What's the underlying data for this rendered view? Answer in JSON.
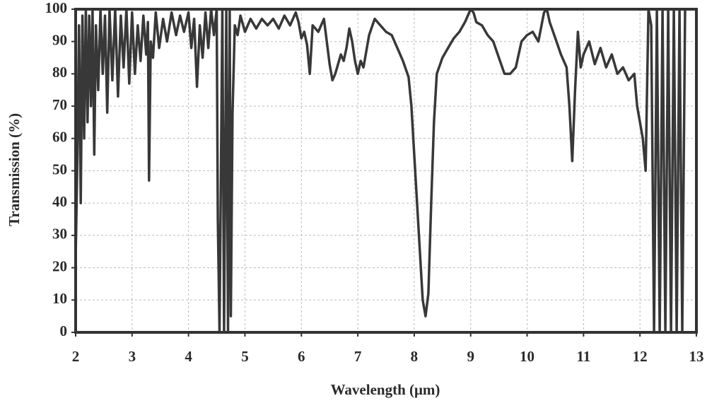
{
  "chart_data": {
    "type": "line",
    "xlabel": "Wavelength (μm)",
    "ylabel": "Transmission (%)",
    "x": [
      2.0,
      2.03,
      2.06,
      2.09,
      2.12,
      2.15,
      2.18,
      2.21,
      2.24,
      2.27,
      2.3,
      2.33,
      2.36,
      2.4,
      2.44,
      2.48,
      2.52,
      2.56,
      2.6,
      2.65,
      2.7,
      2.75,
      2.8,
      2.85,
      2.9,
      2.95,
      3.0,
      3.05,
      3.1,
      3.15,
      3.2,
      3.25,
      3.28,
      3.3,
      3.33,
      3.37,
      3.42,
      3.48,
      3.55,
      3.62,
      3.7,
      3.78,
      3.85,
      3.92,
      4.0,
      4.05,
      4.1,
      4.15,
      4.2,
      4.25,
      4.3,
      4.35,
      4.4,
      4.45,
      4.5,
      4.52,
      4.55,
      4.6,
      4.63,
      4.67,
      4.7,
      4.73,
      4.75,
      4.78,
      4.82,
      4.87,
      4.92,
      5.0,
      5.1,
      5.2,
      5.3,
      5.4,
      5.5,
      5.6,
      5.7,
      5.8,
      5.9,
      5.95,
      6.0,
      6.05,
      6.1,
      6.15,
      6.2,
      6.3,
      6.4,
      6.45,
      6.5,
      6.55,
      6.6,
      6.7,
      6.75,
      6.8,
      6.85,
      6.9,
      6.95,
      7.0,
      7.05,
      7.1,
      7.2,
      7.3,
      7.4,
      7.5,
      7.6,
      7.7,
      7.8,
      7.9,
      7.95,
      8.0,
      8.05,
      8.1,
      8.15,
      8.2,
      8.25,
      8.3,
      8.35,
      8.4,
      8.5,
      8.6,
      8.7,
      8.8,
      8.9,
      9.0,
      9.05,
      9.1,
      9.2,
      9.3,
      9.4,
      9.5,
      9.6,
      9.7,
      9.8,
      9.9,
      10.0,
      10.1,
      10.2,
      10.3,
      10.35,
      10.4,
      10.5,
      10.6,
      10.7,
      10.75,
      10.8,
      10.85,
      10.9,
      10.95,
      11.0,
      11.1,
      11.2,
      11.3,
      11.4,
      11.5,
      11.6,
      11.7,
      11.8,
      11.9,
      11.95,
      12.0,
      12.05,
      12.1,
      12.15,
      12.2,
      12.25,
      12.3,
      12.35,
      12.4,
      12.45,
      12.5,
      12.55,
      12.6,
      12.65,
      12.7,
      12.75,
      12.8
    ],
    "series": [
      {
        "color": "#383838",
        "values": [
          23,
          53,
          95,
          40,
          98,
          60,
          100,
          65,
          98,
          70,
          100,
          55,
          95,
          75,
          100,
          80,
          98,
          68,
          100,
          78,
          100,
          73,
          98,
          82,
          100,
          77,
          99,
          80,
          95,
          84,
          98,
          86,
          96,
          47,
          90,
          85,
          99,
          88,
          97,
          90,
          99,
          92,
          98,
          93,
          99,
          88,
          97,
          76,
          95,
          85,
          99,
          88,
          100,
          92,
          100,
          35,
          0,
          100,
          0,
          100,
          0,
          100,
          5,
          68,
          95,
          92,
          98,
          93,
          97,
          94,
          97,
          95,
          97,
          94,
          98,
          95,
          99,
          96,
          91,
          93,
          89,
          80,
          95,
          93,
          97,
          90,
          83,
          78,
          80,
          86,
          84,
          88,
          94,
          90,
          84,
          80,
          84,
          82,
          92,
          97,
          95,
          93,
          92,
          88,
          84,
          79,
          70,
          55,
          40,
          25,
          10,
          5,
          12,
          40,
          65,
          80,
          85,
          88,
          91,
          93,
          96,
          100,
          99,
          96,
          95,
          92,
          90,
          85,
          80,
          80,
          82,
          90,
          92,
          93,
          90,
          99,
          100,
          96,
          91,
          86,
          82,
          70,
          53,
          75,
          93,
          82,
          86,
          90,
          83,
          88,
          82,
          86,
          80,
          82,
          78,
          80,
          70,
          65,
          60,
          50,
          100,
          95,
          0,
          100,
          0,
          100,
          0,
          100,
          0,
          100,
          0,
          100,
          0,
          100
        ]
      }
    ],
    "xlim": [
      2,
      13
    ],
    "ylim": [
      0,
      100
    ],
    "xticks": [
      2,
      3,
      4,
      5,
      6,
      7,
      8,
      9,
      10,
      11,
      12,
      13
    ],
    "yticks": [
      0,
      10,
      20,
      30,
      40,
      50,
      60,
      70,
      80,
      90,
      100
    ],
    "grid": true
  }
}
